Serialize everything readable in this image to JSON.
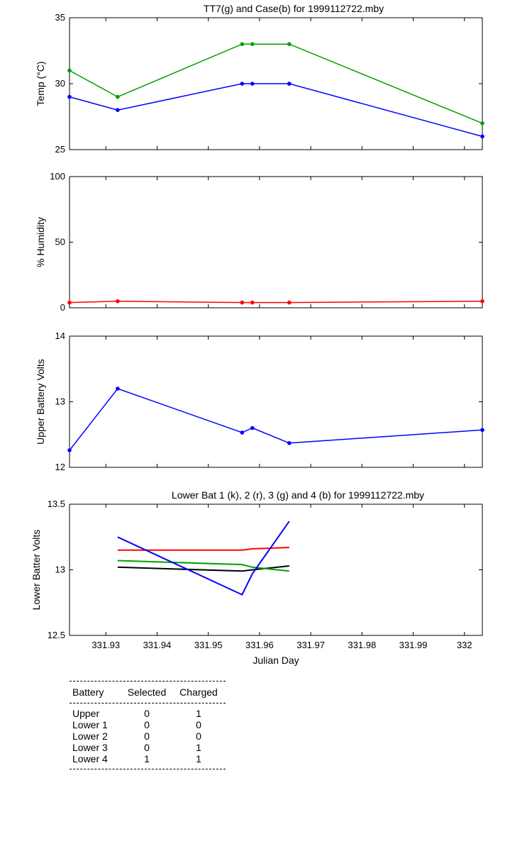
{
  "chart_data": [
    {
      "type": "line",
      "title": "TT7(g) and Case(b) for 1999112722.mby",
      "ylabel": "Temp  (°C)",
      "xlabel": "",
      "xlim": [
        331.9229,
        332.0035
      ],
      "ylim": [
        25,
        35
      ],
      "yticks": [
        25,
        30,
        35
      ],
      "x": [
        331.9229,
        331.9323,
        331.9566,
        331.9586,
        331.9658,
        332.0035
      ],
      "series": [
        {
          "name": "TT7",
          "color": "#00a000",
          "values": [
            31,
            29,
            33,
            33,
            33,
            27
          ]
        },
        {
          "name": "Case",
          "color": "#0000ff",
          "values": [
            29,
            28,
            30,
            30,
            30,
            26
          ]
        }
      ]
    },
    {
      "type": "line",
      "title": "",
      "ylabel": "% Humidity",
      "xlabel": "",
      "xlim": [
        331.9229,
        332.0035
      ],
      "ylim": [
        0,
        100
      ],
      "yticks": [
        0,
        50,
        100
      ],
      "x": [
        331.9229,
        331.9323,
        331.9566,
        331.9586,
        331.9658,
        332.0035
      ],
      "series": [
        {
          "name": "Humidity",
          "color": "#ff0000",
          "values": [
            4,
            5,
            4,
            4,
            4,
            5
          ]
        }
      ]
    },
    {
      "type": "line",
      "title": "",
      "ylabel": "Upper Battery Volts",
      "xlabel": "",
      "xlim": [
        331.9229,
        332.0035
      ],
      "ylim": [
        12,
        14
      ],
      "yticks": [
        12,
        13,
        14
      ],
      "x": [
        331.9229,
        331.9323,
        331.9566,
        331.9586,
        331.9658,
        332.0035
      ],
      "series": [
        {
          "name": "Upper",
          "color": "#0000ff",
          "values": [
            12.26,
            13.2,
            12.53,
            12.6,
            12.37,
            12.57
          ]
        }
      ]
    },
    {
      "type": "line",
      "title": "Lower Bat 1 (k), 2 (r), 3 (g) and 4 (b) for 1999112722.mby",
      "ylabel": "Lower Batter Volts",
      "xlabel": "Julian Day",
      "xlim": [
        331.9229,
        332.0035
      ],
      "ylim": [
        12.5,
        13.5
      ],
      "yticks": [
        12.5,
        13,
        13.5
      ],
      "xticks": [
        331.93,
        331.94,
        331.95,
        331.96,
        331.97,
        331.98,
        331.99,
        332
      ],
      "xticklabels": [
        "331.93",
        "331.94",
        "331.95",
        "331.96",
        "331.97",
        "331.98",
        "331.99",
        "332"
      ],
      "x": [
        331.9323,
        331.9566,
        331.9586,
        331.9658
      ],
      "series": [
        {
          "name": "Lower 1",
          "color": "#000000",
          "values": [
            13.02,
            12.99,
            13.0,
            13.03
          ]
        },
        {
          "name": "Lower 2",
          "color": "#ff0000",
          "values": [
            13.15,
            13.15,
            13.16,
            13.17
          ]
        },
        {
          "name": "Lower 3",
          "color": "#00a000",
          "values": [
            13.07,
            13.04,
            13.02,
            12.99
          ]
        },
        {
          "name": "Lower 4",
          "color": "#0000ff",
          "values": [
            13.25,
            12.81,
            12.97,
            13.37
          ]
        }
      ]
    }
  ],
  "battery_table": {
    "headers": [
      "Battery",
      "Selected",
      "Charged"
    ],
    "rows": [
      [
        "Upper",
        "0",
        "1"
      ],
      [
        "Lower 1",
        "0",
        "0"
      ],
      [
        "Lower 2",
        "0",
        "0"
      ],
      [
        "Lower 3",
        "0",
        "1"
      ],
      [
        "Lower 4",
        "1",
        "1"
      ]
    ]
  }
}
